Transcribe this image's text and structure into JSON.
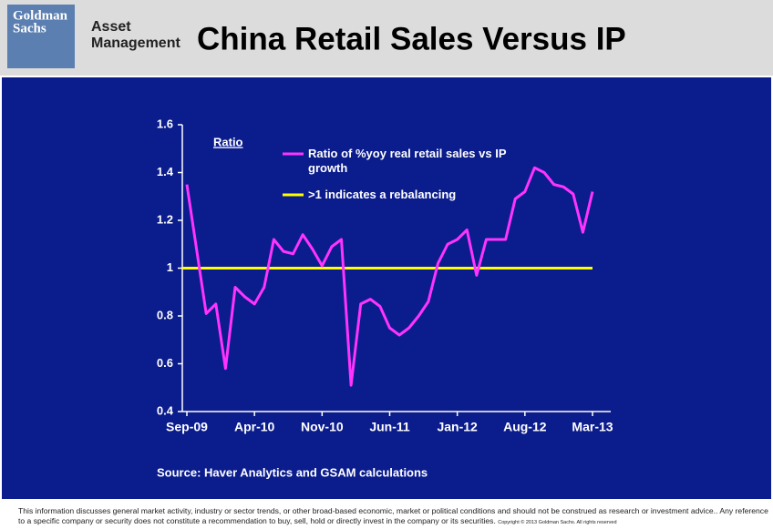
{
  "header": {
    "logo": [
      "Goldman",
      "Sachs"
    ],
    "division": [
      "Asset",
      "Management"
    ]
  },
  "chart_data": {
    "type": "line",
    "title": "China Retail Sales Versus IP",
    "y_label": "Ratio",
    "categories": [
      "Sep-09",
      null,
      null,
      null,
      null,
      null,
      null,
      "Apr-10",
      null,
      null,
      null,
      null,
      null,
      null,
      "Nov-10",
      null,
      null,
      null,
      null,
      null,
      null,
      "Jun-11",
      null,
      null,
      null,
      null,
      null,
      null,
      "Jan-12",
      null,
      null,
      null,
      null,
      null,
      null,
      "Aug-12",
      null,
      null,
      null,
      null,
      null,
      null,
      "Mar-13"
    ],
    "series": [
      {
        "name": "Ratio of %yoy real retail sales vs IP growth",
        "color": "#ff33ff",
        "values": [
          1.35,
          1.08,
          0.81,
          0.85,
          0.58,
          0.92,
          0.88,
          0.85,
          0.92,
          1.12,
          1.07,
          1.06,
          1.14,
          1.08,
          1.01,
          1.09,
          1.12,
          0.51,
          0.85,
          0.87,
          0.84,
          0.75,
          0.72,
          0.75,
          0.8,
          0.86,
          1.02,
          1.1,
          1.12,
          1.16,
          0.97,
          1.12,
          1.12,
          1.12,
          1.29,
          1.32,
          1.42,
          1.4,
          1.35,
          1.34,
          1.31,
          1.15,
          1.32
        ]
      }
    ],
    "reference_line": {
      "value": 1,
      "name": ">1 indicates a rebalancing",
      "color": "#ffff00"
    },
    "ylim": [
      0.4,
      1.6
    ],
    "yticks": [
      0.4,
      0.6,
      0.8,
      1,
      1.2,
      1.4,
      1.6
    ],
    "source": "Source: Haver Analytics and GSAM calculations"
  },
  "footer": {
    "disclaimer": "This information discusses general market activity, industry or sector trends, or other broad-based economic, market or political conditions and should not be construed as research or investment advice.. Any reference to a specific company or security does not constitute a recommendation to buy, sell, hold or directly invest in the company or its securities.",
    "copyright": "Copyright © 2013 Goldman Sachs. All rights reserved"
  }
}
